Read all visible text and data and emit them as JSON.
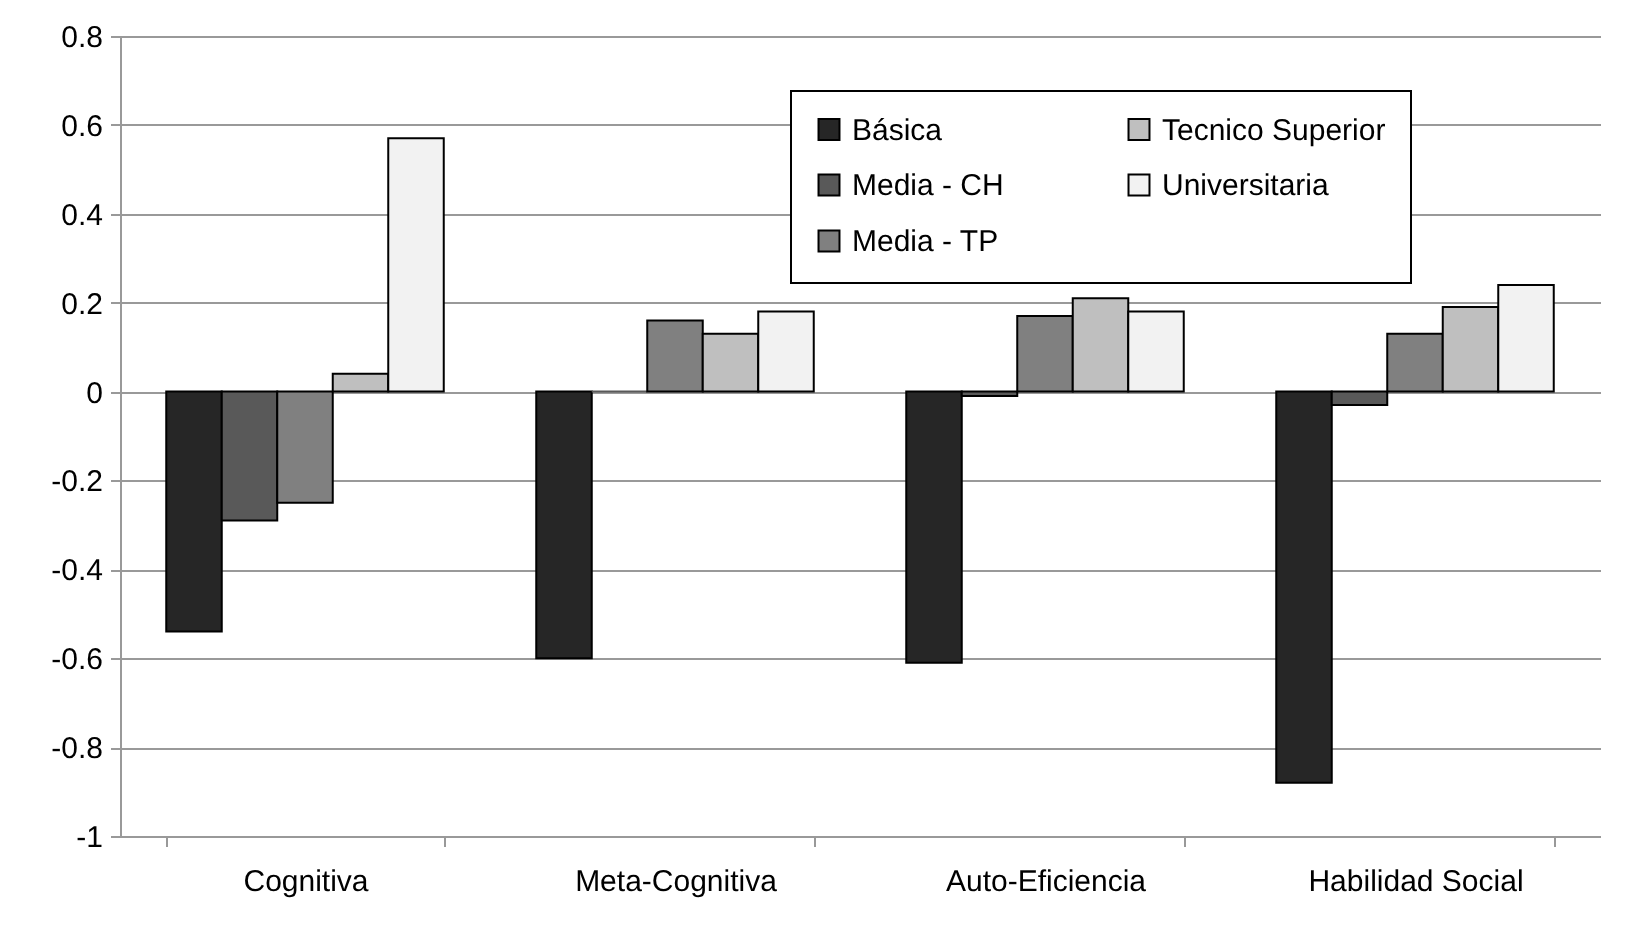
{
  "chart_data": {
    "type": "bar",
    "categories": [
      "Cognitiva",
      "Meta-Cognitiva",
      "Auto-Eficiencia",
      "Habilidad Social"
    ],
    "series": [
      {
        "name": "Básica",
        "color": "#262626",
        "values": [
          -0.54,
          -0.6,
          -0.61,
          -0.88
        ]
      },
      {
        "name": "Media - CH",
        "color": "#595959",
        "values": [
          -0.29,
          0.0,
          -0.01,
          -0.03
        ]
      },
      {
        "name": "Media - TP",
        "color": "#808080",
        "values": [
          -0.25,
          0.16,
          0.17,
          0.13
        ]
      },
      {
        "name": "Tecnico Superior",
        "color": "#bfbfbf",
        "values": [
          0.04,
          0.13,
          0.21,
          0.19
        ]
      },
      {
        "name": "Universitaria",
        "color": "#f2f2f2",
        "values": [
          0.57,
          0.18,
          0.18,
          0.24
        ]
      }
    ],
    "ylim": [
      -1,
      0.8
    ],
    "yticks": [
      -1,
      -0.8,
      -0.6,
      -0.4,
      -0.2,
      0,
      0.2,
      0.4,
      0.6,
      0.8
    ],
    "grid": "y",
    "legend": "top right"
  }
}
